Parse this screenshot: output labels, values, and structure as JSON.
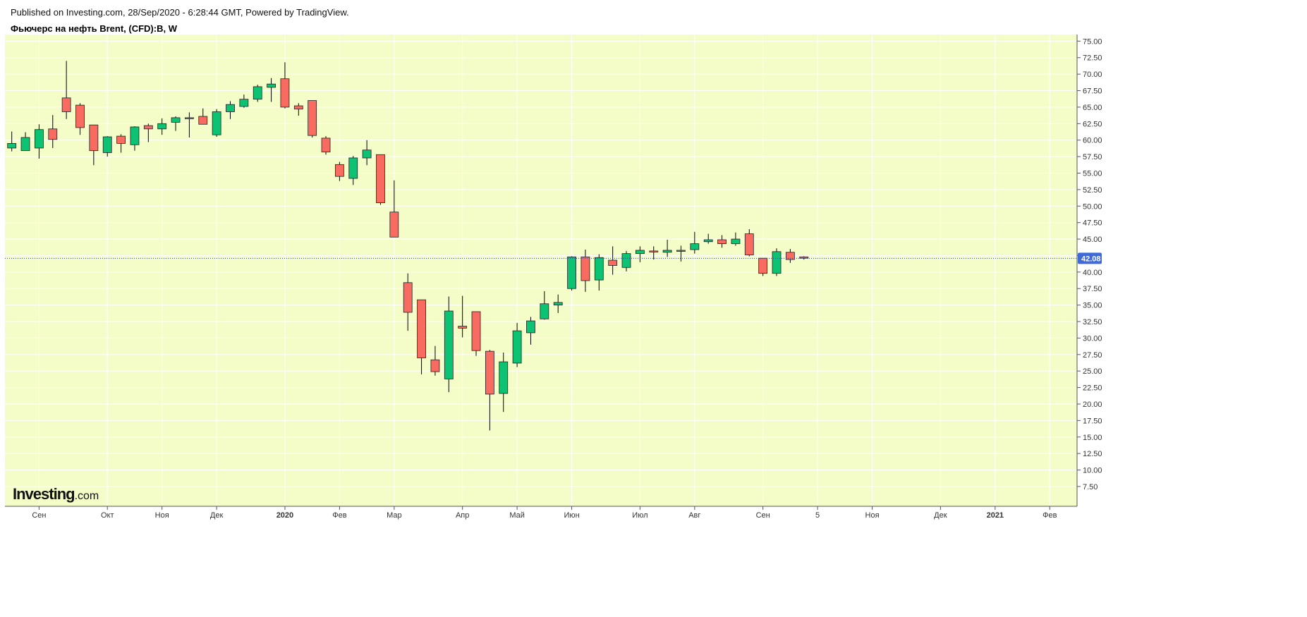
{
  "header": {
    "publisher": "Published on Investing.com, 28/Sep/2020 - 6:28:44 GMT, Powered by TradingView.",
    "title": "Фьючерс на нефть Brent, (CFD):B, W"
  },
  "logo": {
    "main": "Investing",
    "sub": ".com"
  },
  "colors": {
    "background": "#f4fdc8",
    "grid": "#ffffff",
    "up": "#0cc373",
    "down": "#f96a61",
    "wick": "#000000",
    "price_line": "#2a3cb4",
    "price_label": "#3f6ad8"
  },
  "chart_data": {
    "type": "candlestick",
    "title": "Фьючерс на нефть Brent, (CFD):B, W",
    "timeframe": "W",
    "ylim": [
      4.5,
      76
    ],
    "y_ticks": [
      7.5,
      10,
      12.5,
      15,
      17.5,
      20,
      22.5,
      25,
      27.5,
      30,
      32.5,
      35,
      37.5,
      40,
      42.5,
      45,
      47.5,
      50,
      52.5,
      55,
      57.5,
      60,
      62.5,
      65,
      67.5,
      70,
      72.5,
      75
    ],
    "y_tick_labels": [
      "7.50",
      "10.00",
      "12.50",
      "15.00",
      "17.50",
      "20.00",
      "22.50",
      "25.00",
      "27.50",
      "30.00",
      "32.50",
      "35.00",
      "37.50",
      "40.00",
      "42.50",
      "45.00",
      "47.50",
      "50.00",
      "52.50",
      "55.00",
      "57.50",
      "60.00",
      "62.50",
      "65.00",
      "67.50",
      "70.00",
      "72.50",
      "75.00"
    ],
    "x_range": [
      -0.5,
      78
    ],
    "x_ticks": [
      {
        "label": "Сен",
        "x": 2,
        "bold": false
      },
      {
        "label": "Окт",
        "x": 7,
        "bold": false
      },
      {
        "label": "Ноя",
        "x": 11,
        "bold": false
      },
      {
        "label": "Дек",
        "x": 15,
        "bold": false
      },
      {
        "label": "2020",
        "x": 20,
        "bold": true
      },
      {
        "label": "Фев",
        "x": 24,
        "bold": false
      },
      {
        "label": "Мар",
        "x": 28,
        "bold": false
      },
      {
        "label": "Апр",
        "x": 33,
        "bold": false
      },
      {
        "label": "Май",
        "x": 37,
        "bold": false
      },
      {
        "label": "Июн",
        "x": 41,
        "bold": false
      },
      {
        "label": "Июл",
        "x": 46,
        "bold": false
      },
      {
        "label": "Авг",
        "x": 50,
        "bold": false
      },
      {
        "label": "Сен",
        "x": 55,
        "bold": false
      },
      {
        "label": "5",
        "x": 59,
        "bold": false
      },
      {
        "label": "Ноя",
        "x": 63,
        "bold": false
      },
      {
        "label": "Дек",
        "x": 68,
        "bold": false
      },
      {
        "label": "2021",
        "x": 72,
        "bold": true
      },
      {
        "label": "Фев",
        "x": 76,
        "bold": false
      }
    ],
    "current_price": 42.08,
    "current_price_label": "42.08",
    "candles": [
      {
        "o": 58.8,
        "h": 61.3,
        "l": 58.3,
        "c": 59.5
      },
      {
        "o": 58.4,
        "h": 61.2,
        "l": 58.4,
        "c": 60.4
      },
      {
        "o": 58.8,
        "h": 62.4,
        "l": 57.2,
        "c": 61.6
      },
      {
        "o": 61.7,
        "h": 63.8,
        "l": 58.8,
        "c": 60.1
      },
      {
        "o": 66.4,
        "h": 72.0,
        "l": 63.2,
        "c": 64.3
      },
      {
        "o": 65.3,
        "h": 65.6,
        "l": 60.8,
        "c": 61.9
      },
      {
        "o": 62.3,
        "h": 62.3,
        "l": 56.2,
        "c": 58.4
      },
      {
        "o": 58.1,
        "h": 60.6,
        "l": 57.5,
        "c": 60.5
      },
      {
        "o": 60.6,
        "h": 60.9,
        "l": 58.1,
        "c": 59.5
      },
      {
        "o": 59.3,
        "h": 62.1,
        "l": 58.4,
        "c": 62.0
      },
      {
        "o": 62.2,
        "h": 62.5,
        "l": 59.7,
        "c": 61.7
      },
      {
        "o": 61.7,
        "h": 63.3,
        "l": 60.8,
        "c": 62.5
      },
      {
        "o": 62.7,
        "h": 63.6,
        "l": 61.4,
        "c": 63.4
      },
      {
        "o": 63.4,
        "h": 64.2,
        "l": 60.4,
        "c": 63.4
      },
      {
        "o": 63.6,
        "h": 64.8,
        "l": 62.4,
        "c": 62.4
      },
      {
        "o": 60.8,
        "h": 64.7,
        "l": 60.5,
        "c": 64.3
      },
      {
        "o": 64.3,
        "h": 65.9,
        "l": 63.2,
        "c": 65.4
      },
      {
        "o": 65.1,
        "h": 66.9,
        "l": 64.9,
        "c": 66.2
      },
      {
        "o": 66.2,
        "h": 68.4,
        "l": 65.8,
        "c": 68.1
      },
      {
        "o": 68.0,
        "h": 69.4,
        "l": 65.8,
        "c": 68.5
      },
      {
        "o": 69.3,
        "h": 71.8,
        "l": 64.8,
        "c": 65.0
      },
      {
        "o": 65.2,
        "h": 65.6,
        "l": 63.7,
        "c": 64.7
      },
      {
        "o": 66.0,
        "h": 66.0,
        "l": 60.4,
        "c": 60.7
      },
      {
        "o": 60.3,
        "h": 60.6,
        "l": 57.8,
        "c": 58.2
      },
      {
        "o": 56.3,
        "h": 56.7,
        "l": 53.8,
        "c": 54.5
      },
      {
        "o": 54.2,
        "h": 57.6,
        "l": 53.2,
        "c": 57.3
      },
      {
        "o": 57.3,
        "h": 60.0,
        "l": 56.2,
        "c": 58.5
      },
      {
        "o": 57.8,
        "h": 57.8,
        "l": 50.2,
        "c": 50.5
      },
      {
        "o": 49.1,
        "h": 53.9,
        "l": 45.3,
        "c": 45.3
      },
      {
        "o": 38.4,
        "h": 39.8,
        "l": 31.1,
        "c": 33.9
      },
      {
        "o": 35.8,
        "h": 35.8,
        "l": 24.5,
        "c": 27.0
      },
      {
        "o": 26.7,
        "h": 28.8,
        "l": 24.3,
        "c": 24.9
      },
      {
        "o": 23.8,
        "h": 36.3,
        "l": 21.8,
        "c": 34.1
      },
      {
        "o": 31.8,
        "h": 36.4,
        "l": 30.1,
        "c": 31.5
      },
      {
        "o": 34.0,
        "h": 34.0,
        "l": 27.3,
        "c": 28.1
      },
      {
        "o": 28.0,
        "h": 28.2,
        "l": 16.0,
        "c": 21.5
      },
      {
        "o": 21.6,
        "h": 27.8,
        "l": 18.8,
        "c": 26.4
      },
      {
        "o": 26.2,
        "h": 32.3,
        "l": 25.6,
        "c": 31.1
      },
      {
        "o": 30.8,
        "h": 33.2,
        "l": 29.0,
        "c": 32.6
      },
      {
        "o": 32.9,
        "h": 37.1,
        "l": 32.8,
        "c": 35.2
      },
      {
        "o": 35.0,
        "h": 36.6,
        "l": 33.8,
        "c": 35.4
      },
      {
        "o": 37.5,
        "h": 42.4,
        "l": 37.2,
        "c": 42.3
      },
      {
        "o": 42.3,
        "h": 43.4,
        "l": 37.0,
        "c": 38.7
      },
      {
        "o": 38.8,
        "h": 42.7,
        "l": 37.2,
        "c": 42.2
      },
      {
        "o": 41.8,
        "h": 43.9,
        "l": 39.6,
        "c": 41.0
      },
      {
        "o": 40.7,
        "h": 43.2,
        "l": 40.1,
        "c": 42.8
      },
      {
        "o": 42.8,
        "h": 43.9,
        "l": 41.5,
        "c": 43.3
      },
      {
        "o": 43.2,
        "h": 43.9,
        "l": 41.9,
        "c": 43.1
      },
      {
        "o": 43.0,
        "h": 44.9,
        "l": 42.3,
        "c": 43.3
      },
      {
        "o": 43.3,
        "h": 44.0,
        "l": 41.6,
        "c": 43.3
      },
      {
        "o": 43.4,
        "h": 46.1,
        "l": 42.8,
        "c": 44.3
      },
      {
        "o": 44.6,
        "h": 45.8,
        "l": 44.3,
        "c": 44.9
      },
      {
        "o": 44.9,
        "h": 45.6,
        "l": 43.7,
        "c": 44.3
      },
      {
        "o": 44.3,
        "h": 46.0,
        "l": 44.0,
        "c": 45.0
      },
      {
        "o": 45.8,
        "h": 46.5,
        "l": 42.4,
        "c": 42.6
      },
      {
        "o": 42.1,
        "h": 42.1,
        "l": 39.4,
        "c": 39.8
      },
      {
        "o": 39.8,
        "h": 43.6,
        "l": 39.4,
        "c": 43.1
      },
      {
        "o": 43.0,
        "h": 43.5,
        "l": 41.4,
        "c": 41.9
      },
      {
        "o": 42.3,
        "h": 42.4,
        "l": 41.9,
        "c": 42.1
      }
    ]
  }
}
